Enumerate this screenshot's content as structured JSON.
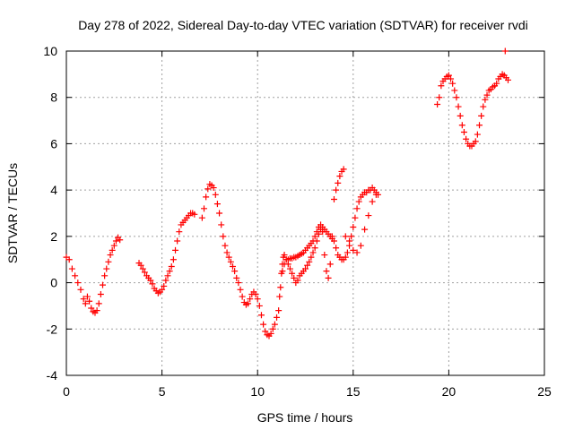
{
  "chart_data": {
    "type": "scatter",
    "title": "Day 278 of 2022, Sidereal Day-to-day VTEC variation (SDTVAR) for receiver rvdi",
    "xlabel": "GPS time / hours",
    "ylabel": "SDTVAR / TECUs",
    "xlim": [
      0,
      25
    ],
    "ylim": [
      -4,
      10
    ],
    "xticks": [
      0,
      5,
      10,
      15,
      20,
      25
    ],
    "yticks": [
      -4,
      -2,
      0,
      2,
      4,
      6,
      8,
      10
    ],
    "grid": true,
    "marker": "+",
    "color": "#ff0000",
    "series": [
      {
        "name": "SDTVAR",
        "points": [
          [
            0.0,
            1.1
          ],
          [
            0.15,
            1.0
          ],
          [
            0.3,
            0.6
          ],
          [
            0.45,
            0.3
          ],
          [
            0.6,
            0.0
          ],
          [
            0.75,
            -0.3
          ],
          [
            0.9,
            -0.7
          ],
          [
            1.0,
            -0.9
          ],
          [
            1.1,
            -0.6
          ],
          [
            1.2,
            -0.8
          ],
          [
            1.3,
            -1.1
          ],
          [
            1.4,
            -1.25
          ],
          [
            1.5,
            -1.3
          ],
          [
            1.6,
            -1.2
          ],
          [
            1.7,
            -0.9
          ],
          [
            1.8,
            -0.5
          ],
          [
            1.9,
            -0.1
          ],
          [
            2.0,
            0.3
          ],
          [
            2.1,
            0.6
          ],
          [
            2.2,
            0.9
          ],
          [
            2.3,
            1.2
          ],
          [
            2.4,
            1.4
          ],
          [
            2.5,
            1.6
          ],
          [
            2.6,
            1.8
          ],
          [
            2.7,
            1.95
          ],
          [
            2.8,
            1.85
          ],
          [
            3.8,
            0.85
          ],
          [
            3.9,
            0.75
          ],
          [
            4.0,
            0.6
          ],
          [
            4.1,
            0.45
          ],
          [
            4.2,
            0.3
          ],
          [
            4.3,
            0.2
          ],
          [
            4.4,
            0.1
          ],
          [
            4.5,
            -0.05
          ],
          [
            4.6,
            -0.25
          ],
          [
            4.7,
            -0.35
          ],
          [
            4.8,
            -0.45
          ],
          [
            4.9,
            -0.4
          ],
          [
            5.0,
            -0.3
          ],
          [
            5.1,
            -0.15
          ],
          [
            5.2,
            0.1
          ],
          [
            5.3,
            0.3
          ],
          [
            5.4,
            0.5
          ],
          [
            5.5,
            0.7
          ],
          [
            5.6,
            1.0
          ],
          [
            5.7,
            1.4
          ],
          [
            5.8,
            1.8
          ],
          [
            5.9,
            2.2
          ],
          [
            6.0,
            2.5
          ],
          [
            6.1,
            2.6
          ],
          [
            6.2,
            2.7
          ],
          [
            6.3,
            2.8
          ],
          [
            6.4,
            2.9
          ],
          [
            6.5,
            3.0
          ],
          [
            6.6,
            3.0
          ],
          [
            6.7,
            2.95
          ],
          [
            7.1,
            2.8
          ],
          [
            7.2,
            3.2
          ],
          [
            7.3,
            3.7
          ],
          [
            7.4,
            4.05
          ],
          [
            7.5,
            4.25
          ],
          [
            7.6,
            4.2
          ],
          [
            7.7,
            4.1
          ],
          [
            7.8,
            3.8
          ],
          [
            7.9,
            3.4
          ],
          [
            8.0,
            3.0
          ],
          [
            8.1,
            2.5
          ],
          [
            8.2,
            2.0
          ],
          [
            8.3,
            1.6
          ],
          [
            8.4,
            1.3
          ],
          [
            8.5,
            1.1
          ],
          [
            8.6,
            0.9
          ],
          [
            8.7,
            0.7
          ],
          [
            8.8,
            0.5
          ],
          [
            8.9,
            0.2
          ],
          [
            9.0,
            0.0
          ],
          [
            9.1,
            -0.3
          ],
          [
            9.2,
            -0.6
          ],
          [
            9.3,
            -0.85
          ],
          [
            9.4,
            -0.95
          ],
          [
            9.5,
            -0.9
          ],
          [
            9.6,
            -0.7
          ],
          [
            9.7,
            -0.5
          ],
          [
            9.8,
            -0.4
          ],
          [
            9.9,
            -0.5
          ],
          [
            10.0,
            -0.7
          ],
          [
            10.1,
            -1.0
          ],
          [
            10.2,
            -1.4
          ],
          [
            10.3,
            -1.8
          ],
          [
            10.4,
            -2.1
          ],
          [
            10.5,
            -2.25
          ],
          [
            10.6,
            -2.3
          ],
          [
            10.7,
            -2.2
          ],
          [
            10.8,
            -2.0
          ],
          [
            10.9,
            -1.8
          ],
          [
            11.0,
            -1.5
          ],
          [
            11.1,
            -1.2
          ],
          [
            11.15,
            -0.6
          ],
          [
            11.2,
            -0.2
          ],
          [
            11.25,
            0.4
          ],
          [
            11.3,
            0.8
          ],
          [
            11.35,
            1.1
          ],
          [
            11.4,
            1.2
          ],
          [
            11.5,
            1.0
          ],
          [
            11.6,
            0.8
          ],
          [
            11.7,
            0.6
          ],
          [
            11.8,
            0.4
          ],
          [
            11.9,
            0.2
          ],
          [
            12.0,
            0.0
          ],
          [
            12.1,
            0.1
          ],
          [
            12.2,
            0.3
          ],
          [
            12.3,
            0.4
          ],
          [
            12.4,
            0.5
          ],
          [
            12.5,
            0.6
          ],
          [
            12.6,
            0.75
          ],
          [
            12.7,
            0.9
          ],
          [
            12.8,
            1.1
          ],
          [
            12.9,
            1.3
          ],
          [
            13.0,
            1.5
          ],
          [
            13.1,
            1.8
          ],
          [
            13.2,
            2.1
          ],
          [
            13.3,
            2.3
          ],
          [
            13.4,
            2.2
          ],
          [
            13.5,
            1.2
          ],
          [
            13.6,
            0.5
          ],
          [
            13.7,
            0.2
          ],
          [
            13.8,
            0.8
          ],
          [
            13.9,
            2.0
          ],
          [
            14.0,
            3.6
          ],
          [
            14.1,
            4.0
          ],
          [
            14.2,
            4.3
          ],
          [
            14.3,
            4.6
          ],
          [
            14.4,
            4.8
          ],
          [
            14.5,
            4.9
          ],
          [
            11.3,
            0.5
          ],
          [
            11.4,
            0.8
          ],
          [
            11.5,
            1.0
          ],
          [
            11.6,
            1.0
          ],
          [
            11.7,
            1.05
          ],
          [
            11.8,
            1.05
          ],
          [
            11.9,
            1.1
          ],
          [
            12.0,
            1.1
          ],
          [
            12.1,
            1.15
          ],
          [
            12.2,
            1.2
          ],
          [
            12.3,
            1.25
          ],
          [
            12.4,
            1.3
          ],
          [
            12.5,
            1.4
          ],
          [
            12.6,
            1.5
          ],
          [
            12.7,
            1.6
          ],
          [
            12.8,
            1.7
          ],
          [
            12.9,
            1.8
          ],
          [
            13.0,
            2.0
          ],
          [
            13.1,
            2.2
          ],
          [
            13.2,
            2.4
          ],
          [
            13.3,
            2.5
          ],
          [
            13.4,
            2.4
          ],
          [
            13.5,
            2.3
          ],
          [
            13.6,
            2.2
          ],
          [
            13.7,
            2.1
          ],
          [
            13.8,
            2.0
          ],
          [
            13.9,
            1.9
          ],
          [
            14.0,
            1.8
          ],
          [
            14.1,
            1.5
          ],
          [
            14.2,
            1.2
          ],
          [
            14.3,
            1.1
          ],
          [
            14.4,
            1.0
          ],
          [
            14.5,
            1.0
          ],
          [
            14.6,
            1.1
          ],
          [
            14.7,
            1.3
          ],
          [
            14.8,
            1.6
          ],
          [
            14.9,
            2.0
          ],
          [
            15.0,
            2.4
          ],
          [
            15.1,
            2.8
          ],
          [
            15.2,
            3.2
          ],
          [
            15.3,
            3.5
          ],
          [
            15.4,
            3.7
          ],
          [
            15.5,
            3.8
          ],
          [
            15.6,
            3.9
          ],
          [
            15.7,
            3.9
          ],
          [
            15.8,
            4.0
          ],
          [
            15.9,
            4.0
          ],
          [
            16.0,
            4.1
          ],
          [
            16.1,
            4.0
          ],
          [
            16.2,
            3.9
          ],
          [
            16.3,
            3.8
          ],
          [
            14.6,
            2.0
          ],
          [
            14.8,
            1.8
          ],
          [
            15.0,
            1.4
          ],
          [
            15.2,
            1.3
          ],
          [
            15.4,
            1.6
          ],
          [
            15.6,
            2.3
          ],
          [
            15.8,
            2.9
          ],
          [
            16.0,
            3.5
          ],
          [
            16.2,
            3.8
          ],
          [
            19.4,
            7.7
          ],
          [
            19.5,
            8.0
          ],
          [
            19.6,
            8.5
          ],
          [
            19.7,
            8.7
          ],
          [
            19.8,
            8.8
          ],
          [
            19.9,
            8.9
          ],
          [
            20.0,
            8.95
          ],
          [
            20.1,
            8.8
          ],
          [
            20.2,
            8.6
          ],
          [
            20.3,
            8.3
          ],
          [
            20.4,
            8.0
          ],
          [
            20.5,
            7.6
          ],
          [
            20.6,
            7.2
          ],
          [
            20.7,
            6.8
          ],
          [
            20.8,
            6.5
          ],
          [
            20.9,
            6.2
          ],
          [
            21.0,
            6.0
          ],
          [
            21.1,
            5.9
          ],
          [
            21.2,
            5.9
          ],
          [
            21.3,
            6.0
          ],
          [
            21.4,
            6.1
          ],
          [
            21.5,
            6.4
          ],
          [
            21.6,
            6.8
          ],
          [
            21.7,
            7.2
          ],
          [
            21.8,
            7.6
          ],
          [
            21.9,
            7.9
          ],
          [
            22.0,
            8.1
          ],
          [
            22.1,
            8.3
          ],
          [
            22.2,
            8.35
          ],
          [
            22.3,
            8.45
          ],
          [
            22.4,
            8.5
          ],
          [
            22.5,
            8.6
          ],
          [
            22.6,
            8.8
          ],
          [
            22.7,
            8.9
          ],
          [
            22.8,
            9.0
          ],
          [
            22.9,
            8.95
          ],
          [
            23.0,
            8.85
          ],
          [
            23.1,
            8.75
          ],
          [
            22.95,
            10.0
          ]
        ]
      }
    ]
  }
}
